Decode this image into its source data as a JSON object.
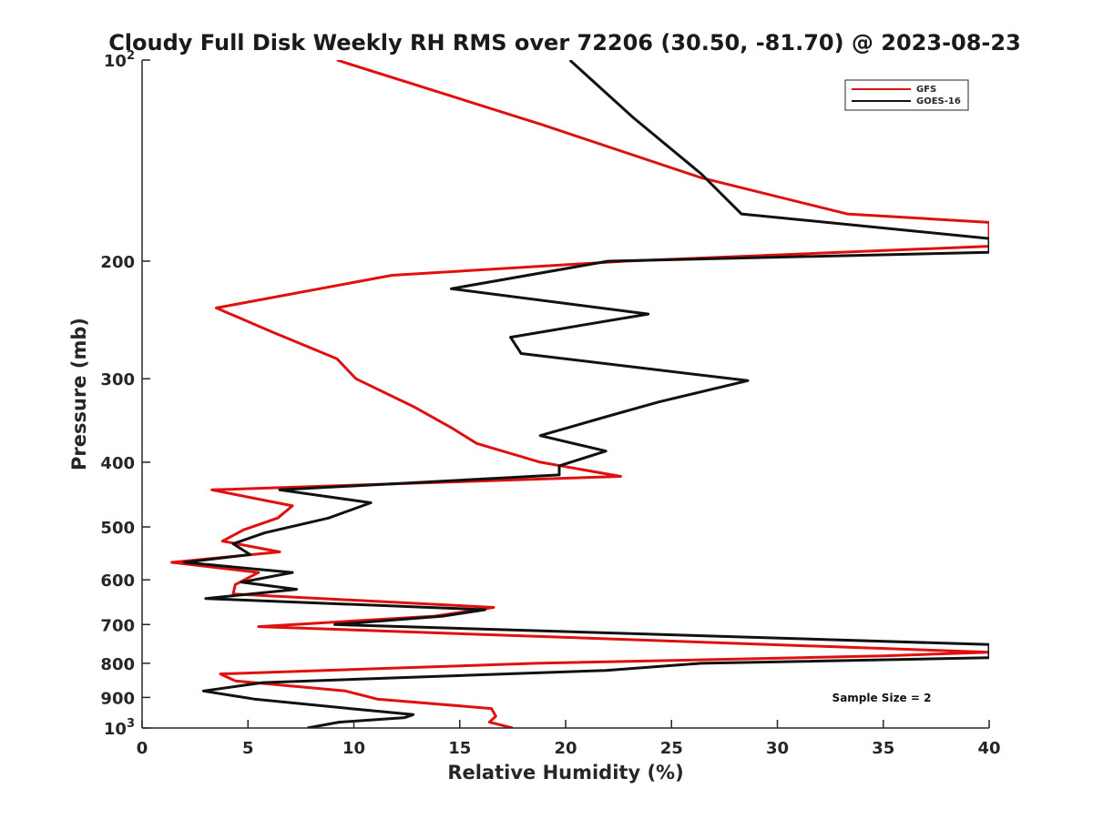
{
  "chart_data": {
    "type": "line",
    "title": "Cloudy Full Disk Weekly RH RMS over 72206 (30.50, -81.70) @ 2023-08-23",
    "xlabel": "Relative Humidity (%)",
    "ylabel": "Pressure (mb)",
    "xlim": [
      0,
      40
    ],
    "ylim": [
      100,
      1000
    ],
    "yscale": "log",
    "y_reversed": true,
    "xticks": [
      0,
      5,
      10,
      15,
      20,
      25,
      30,
      35,
      40
    ],
    "xtick_labels": [
      "0",
      "5",
      "10",
      "15",
      "20",
      "25",
      "30",
      "35",
      "40"
    ],
    "yticks": [
      {
        "value": 100,
        "base": "10",
        "exp": "2"
      },
      {
        "value": 200,
        "base": "200",
        "exp": ""
      },
      {
        "value": 300,
        "base": "300",
        "exp": ""
      },
      {
        "value": 400,
        "base": "400",
        "exp": ""
      },
      {
        "value": 500,
        "base": "500",
        "exp": ""
      },
      {
        "value": 600,
        "base": "600",
        "exp": ""
      },
      {
        "value": 700,
        "base": "700",
        "exp": ""
      },
      {
        "value": 800,
        "base": "800",
        "exp": ""
      },
      {
        "value": 900,
        "base": "900",
        "exp": ""
      },
      {
        "value": 1000,
        "base": "10",
        "exp": "3"
      }
    ],
    "legend_position": "top-right",
    "annotation": "Sample Size = 2",
    "series": [
      {
        "name": "GFS",
        "color": "#e01010",
        "points": [
          [
            9.2,
            100
          ],
          [
            18.9,
            125
          ],
          [
            26.4,
            150
          ],
          [
            33.3,
            170
          ],
          [
            40,
            175
          ],
          [
            40,
            190
          ],
          [
            22.8,
            200
          ],
          [
            11.8,
            210
          ],
          [
            3.5,
            235
          ],
          [
            6.1,
            255
          ],
          [
            9.2,
            280
          ],
          [
            10.1,
            300
          ],
          [
            12.8,
            330
          ],
          [
            14.6,
            355
          ],
          [
            15.8,
            375
          ],
          [
            18.8,
            400
          ],
          [
            22.6,
            420
          ],
          [
            3.3,
            440
          ],
          [
            7.1,
            465
          ],
          [
            6.4,
            485
          ],
          [
            4.8,
            505
          ],
          [
            3.8,
            525
          ],
          [
            6.5,
            545
          ],
          [
            1.4,
            565
          ],
          [
            5.5,
            585
          ],
          [
            4.4,
            610
          ],
          [
            4.3,
            630
          ],
          [
            16.6,
            660
          ],
          [
            13.8,
            680
          ],
          [
            5.5,
            705
          ],
          [
            40,
            770
          ],
          [
            35,
            780
          ],
          [
            18.6,
            800
          ],
          [
            3.7,
            830
          ],
          [
            4.4,
            850
          ],
          [
            9.6,
            880
          ],
          [
            11.1,
            905
          ],
          [
            16.5,
            935
          ],
          [
            16.7,
            960
          ],
          [
            16.4,
            980
          ],
          [
            17.5,
            1000
          ]
        ]
      },
      {
        "name": "GOES-16",
        "color": "#111111",
        "points": [
          [
            20.2,
            100
          ],
          [
            23.2,
            122
          ],
          [
            26.4,
            148
          ],
          [
            28.3,
            170
          ],
          [
            40,
            185
          ],
          [
            40,
            194
          ],
          [
            22.0,
            200
          ],
          [
            14.6,
            220
          ],
          [
            23.9,
            240
          ],
          [
            17.4,
            260
          ],
          [
            17.9,
            275
          ],
          [
            28.6,
            302
          ],
          [
            24.4,
            325
          ],
          [
            21.9,
            342
          ],
          [
            18.8,
            365
          ],
          [
            21.9,
            385
          ],
          [
            19.7,
            405
          ],
          [
            19.7,
            418
          ],
          [
            6.5,
            440
          ],
          [
            10.8,
            460
          ],
          [
            8.8,
            485
          ],
          [
            5.8,
            510
          ],
          [
            4.3,
            530
          ],
          [
            5.1,
            550
          ],
          [
            2.0,
            565
          ],
          [
            7.1,
            585
          ],
          [
            4.7,
            605
          ],
          [
            7.3,
            620
          ],
          [
            3.0,
            640
          ],
          [
            16.2,
            665
          ],
          [
            14.2,
            680
          ],
          [
            9.1,
            700
          ],
          [
            40,
            750
          ],
          [
            40,
            760
          ],
          [
            40,
            785
          ],
          [
            26.4,
            800
          ],
          [
            21.9,
            820
          ],
          [
            5.7,
            855
          ],
          [
            2.9,
            880
          ],
          [
            5.3,
            905
          ],
          [
            9.8,
            935
          ],
          [
            12.8,
            955
          ],
          [
            12.4,
            965
          ],
          [
            9.3,
            980
          ],
          [
            7.8,
            1000
          ]
        ]
      }
    ]
  }
}
